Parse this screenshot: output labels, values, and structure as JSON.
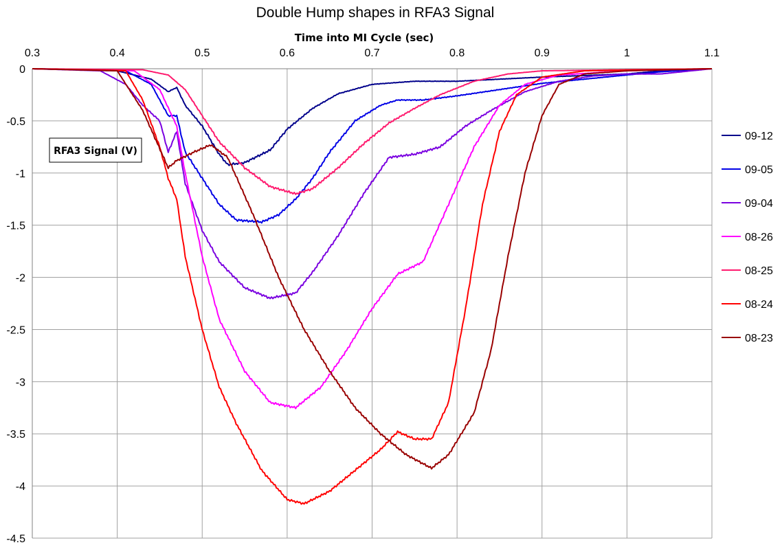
{
  "chart_data": {
    "type": "line",
    "title": "Double Hump shapes in RFA3 Signal",
    "xlabel": "Time into MI Cycle (sec)",
    "ylabel": "RFA3 Signal (V)",
    "xlim": [
      0.3,
      1.1
    ],
    "ylim": [
      -4.5,
      0
    ],
    "x_ticks": [
      "0.3",
      "0.4",
      "0.5",
      "0.6",
      "0.7",
      "0.8",
      "0.9",
      "1",
      "1.1"
    ],
    "y_ticks": [
      "0",
      "-0.5",
      "-1",
      "-1.5",
      "-2",
      "-2.5",
      "-3",
      "-3.5",
      "-4",
      "-4.5"
    ],
    "x_axis_position": "top",
    "grid": true,
    "legend_position": "right",
    "series": [
      {
        "name": "09-12",
        "color": "#00008b",
        "points": [
          [
            0.3,
            0
          ],
          [
            0.4,
            -0.02
          ],
          [
            0.44,
            -0.1
          ],
          [
            0.46,
            -0.22
          ],
          [
            0.47,
            -0.18
          ],
          [
            0.48,
            -0.35
          ],
          [
            0.5,
            -0.55
          ],
          [
            0.52,
            -0.82
          ],
          [
            0.53,
            -0.92
          ],
          [
            0.55,
            -0.9
          ],
          [
            0.58,
            -0.78
          ],
          [
            0.6,
            -0.58
          ],
          [
            0.63,
            -0.38
          ],
          [
            0.66,
            -0.24
          ],
          [
            0.7,
            -0.15
          ],
          [
            0.75,
            -0.12
          ],
          [
            0.8,
            -0.12
          ],
          [
            0.85,
            -0.1
          ],
          [
            0.9,
            -0.08
          ],
          [
            1.0,
            -0.05
          ],
          [
            1.04,
            -0.02
          ],
          [
            1.1,
            0
          ]
        ]
      },
      {
        "name": "09-05",
        "color": "#0000e6",
        "points": [
          [
            0.3,
            0
          ],
          [
            0.41,
            -0.02
          ],
          [
            0.44,
            -0.15
          ],
          [
            0.46,
            -0.45
          ],
          [
            0.47,
            -0.45
          ],
          [
            0.48,
            -0.8
          ],
          [
            0.5,
            -1.05
          ],
          [
            0.52,
            -1.3
          ],
          [
            0.54,
            -1.45
          ],
          [
            0.57,
            -1.47
          ],
          [
            0.59,
            -1.4
          ],
          [
            0.61,
            -1.25
          ],
          [
            0.63,
            -1.05
          ],
          [
            0.65,
            -0.8
          ],
          [
            0.68,
            -0.5
          ],
          [
            0.71,
            -0.35
          ],
          [
            0.73,
            -0.3
          ],
          [
            0.76,
            -0.3
          ],
          [
            0.8,
            -0.26
          ],
          [
            0.85,
            -0.2
          ],
          [
            0.9,
            -0.14
          ],
          [
            0.95,
            -0.1
          ],
          [
            1.0,
            -0.06
          ],
          [
            1.04,
            -0.03
          ],
          [
            1.1,
            0
          ]
        ]
      },
      {
        "name": "09-04",
        "color": "#7a00e0",
        "points": [
          [
            0.3,
            0
          ],
          [
            0.38,
            -0.02
          ],
          [
            0.41,
            -0.15
          ],
          [
            0.43,
            -0.35
          ],
          [
            0.45,
            -0.5
          ],
          [
            0.46,
            -0.8
          ],
          [
            0.47,
            -0.6
          ],
          [
            0.48,
            -1.1
          ],
          [
            0.5,
            -1.55
          ],
          [
            0.52,
            -1.85
          ],
          [
            0.55,
            -2.1
          ],
          [
            0.58,
            -2.2
          ],
          [
            0.61,
            -2.15
          ],
          [
            0.63,
            -1.95
          ],
          [
            0.66,
            -1.6
          ],
          [
            0.69,
            -1.2
          ],
          [
            0.72,
            -0.85
          ],
          [
            0.75,
            -0.82
          ],
          [
            0.78,
            -0.75
          ],
          [
            0.81,
            -0.55
          ],
          [
            0.84,
            -0.4
          ],
          [
            0.88,
            -0.22
          ],
          [
            0.92,
            -0.12
          ],
          [
            0.96,
            -0.07
          ],
          [
            1.0,
            -0.05
          ],
          [
            1.04,
            -0.05
          ],
          [
            1.1,
            0
          ]
        ]
      },
      {
        "name": "08-26",
        "color": "#ff00ff",
        "points": [
          [
            0.3,
            0
          ],
          [
            0.42,
            -0.02
          ],
          [
            0.45,
            -0.2
          ],
          [
            0.47,
            -0.55
          ],
          [
            0.48,
            -1.0
          ],
          [
            0.5,
            -1.8
          ],
          [
            0.52,
            -2.4
          ],
          [
            0.55,
            -2.9
          ],
          [
            0.58,
            -3.2
          ],
          [
            0.61,
            -3.25
          ],
          [
            0.64,
            -3.05
          ],
          [
            0.67,
            -2.7
          ],
          [
            0.7,
            -2.3
          ],
          [
            0.73,
            -1.97
          ],
          [
            0.76,
            -1.85
          ],
          [
            0.79,
            -1.3
          ],
          [
            0.82,
            -0.75
          ],
          [
            0.85,
            -0.35
          ],
          [
            0.88,
            -0.15
          ],
          [
            0.92,
            -0.06
          ],
          [
            1.0,
            -0.02
          ],
          [
            1.1,
            0
          ]
        ]
      },
      {
        "name": "08-25",
        "color": "#ff1a6e",
        "points": [
          [
            0.3,
            0
          ],
          [
            0.43,
            -0.01
          ],
          [
            0.46,
            -0.06
          ],
          [
            0.48,
            -0.2
          ],
          [
            0.5,
            -0.45
          ],
          [
            0.52,
            -0.7
          ],
          [
            0.55,
            -0.95
          ],
          [
            0.58,
            -1.13
          ],
          [
            0.61,
            -1.2
          ],
          [
            0.63,
            -1.15
          ],
          [
            0.66,
            -0.95
          ],
          [
            0.69,
            -0.72
          ],
          [
            0.72,
            -0.52
          ],
          [
            0.75,
            -0.38
          ],
          [
            0.78,
            -0.25
          ],
          [
            0.82,
            -0.12
          ],
          [
            0.86,
            -0.05
          ],
          [
            0.9,
            -0.02
          ],
          [
            1.0,
            -0.01
          ],
          [
            1.1,
            0
          ]
        ]
      },
      {
        "name": "08-24",
        "color": "#ff0000",
        "points": [
          [
            0.3,
            0
          ],
          [
            0.41,
            -0.02
          ],
          [
            0.43,
            -0.3
          ],
          [
            0.45,
            -0.75
          ],
          [
            0.46,
            -1.05
          ],
          [
            0.47,
            -1.25
          ],
          [
            0.48,
            -1.8
          ],
          [
            0.5,
            -2.5
          ],
          [
            0.52,
            -3.05
          ],
          [
            0.54,
            -3.4
          ],
          [
            0.57,
            -3.85
          ],
          [
            0.6,
            -4.13
          ],
          [
            0.62,
            -4.17
          ],
          [
            0.65,
            -4.05
          ],
          [
            0.68,
            -3.85
          ],
          [
            0.71,
            -3.65
          ],
          [
            0.73,
            -3.48
          ],
          [
            0.75,
            -3.55
          ],
          [
            0.77,
            -3.55
          ],
          [
            0.79,
            -3.2
          ],
          [
            0.81,
            -2.3
          ],
          [
            0.83,
            -1.3
          ],
          [
            0.85,
            -0.6
          ],
          [
            0.87,
            -0.25
          ],
          [
            0.9,
            -0.08
          ],
          [
            0.95,
            -0.02
          ],
          [
            1.1,
            0
          ]
        ]
      },
      {
        "name": "08-23",
        "color": "#990000",
        "points": [
          [
            0.3,
            0
          ],
          [
            0.4,
            -0.02
          ],
          [
            0.43,
            -0.4
          ],
          [
            0.46,
            -0.95
          ],
          [
            0.47,
            -0.88
          ],
          [
            0.49,
            -0.8
          ],
          [
            0.51,
            -0.73
          ],
          [
            0.53,
            -0.85
          ],
          [
            0.56,
            -1.4
          ],
          [
            0.59,
            -2.0
          ],
          [
            0.62,
            -2.5
          ],
          [
            0.65,
            -2.9
          ],
          [
            0.68,
            -3.25
          ],
          [
            0.71,
            -3.5
          ],
          [
            0.74,
            -3.7
          ],
          [
            0.77,
            -3.83
          ],
          [
            0.79,
            -3.7
          ],
          [
            0.82,
            -3.3
          ],
          [
            0.84,
            -2.7
          ],
          [
            0.86,
            -1.8
          ],
          [
            0.88,
            -1.0
          ],
          [
            0.9,
            -0.45
          ],
          [
            0.92,
            -0.15
          ],
          [
            0.95,
            -0.05
          ],
          [
            1.0,
            -0.02
          ],
          [
            1.1,
            0
          ]
        ]
      }
    ]
  }
}
